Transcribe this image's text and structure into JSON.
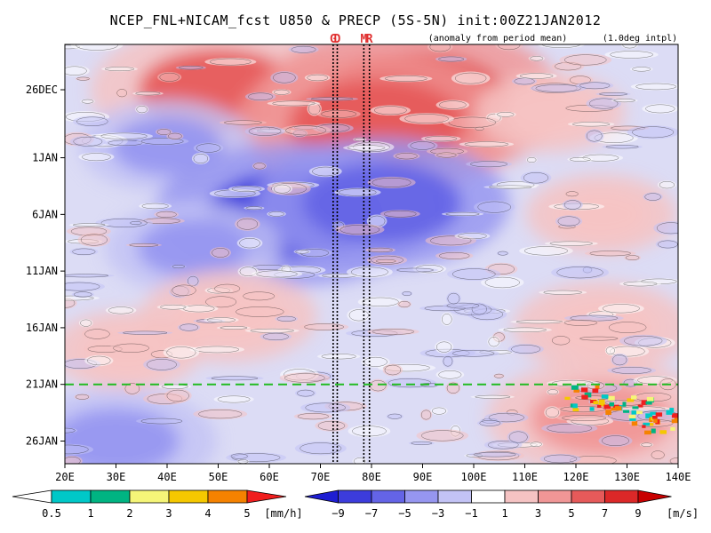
{
  "chart_data": {
    "type": "heatmap",
    "title": "NCEP_FNL+NICAM_fcst U850 & PRECP (5S-5N) init:00Z21JAN2012",
    "annotations": [
      "(anomaly from period mean)",
      "(1.0deg intpl)"
    ],
    "region_markers": [
      {
        "label": "G",
        "lon": 72.5
      },
      {
        "label": "D",
        "lon": 73.3
      },
      {
        "label": "M",
        "lon": 78.5
      },
      {
        "label": "R",
        "lon": 79.6
      }
    ],
    "x_ticks": [
      "20E",
      "30E",
      "40E",
      "50E",
      "60E",
      "70E",
      "80E",
      "90E",
      "100E",
      "110E",
      "120E",
      "130E",
      "140E"
    ],
    "x_tick_values": [
      20,
      30,
      40,
      50,
      60,
      70,
      80,
      90,
      100,
      110,
      120,
      130,
      140
    ],
    "xlim": [
      20,
      140
    ],
    "y_ticks": [
      "26DEC",
      "1JAN",
      "6JAN",
      "11JAN",
      "16JAN",
      "21JAN",
      "26JAN"
    ],
    "y_tick_values": [
      "2011-12-26",
      "2012-01-01",
      "2012-01-06",
      "2012-01-11",
      "2012-01-16",
      "2012-01-21",
      "2012-01-26"
    ],
    "ylim": [
      "2011-12-22",
      "2012-01-28"
    ],
    "forecast_init_date": "2012-01-21",
    "wind_field": {
      "name": "U850",
      "units": "[m/s]",
      "anomalies": [
        {
          "date": "2011-12-26",
          "lon": 50,
          "value": 6
        },
        {
          "date": "2011-12-27",
          "lon": 88,
          "value": 8
        },
        {
          "date": "2011-12-29",
          "lon": 81,
          "value": 7
        },
        {
          "date": "2011-12-28",
          "lon": 115,
          "value": 2
        },
        {
          "date": "2011-12-31",
          "lon": 40,
          "value": -3
        },
        {
          "date": "2012-01-06",
          "lon": 65,
          "value": -7
        },
        {
          "date": "2012-01-05",
          "lon": 82,
          "value": -6
        },
        {
          "date": "2012-01-09",
          "lon": 45,
          "value": -3
        },
        {
          "date": "2012-01-06",
          "lon": 125,
          "value": 2
        },
        {
          "date": "2012-01-15",
          "lon": 52,
          "value": 3
        },
        {
          "date": "2012-01-16",
          "lon": 125,
          "value": 3
        },
        {
          "date": "2012-01-18",
          "lon": 32,
          "value": 2
        },
        {
          "date": "2012-01-24",
          "lon": 125,
          "value": 5
        },
        {
          "date": "2012-01-26",
          "lon": 30,
          "value": -4
        }
      ]
    },
    "precip_field": {
      "name": "PRECP",
      "units": "[mm/h]",
      "cells": [
        {
          "date": "2012-01-22",
          "lon": 123
        },
        {
          "date": "2012-01-23",
          "lon": 131
        },
        {
          "date": "2012-01-24",
          "lon": 136
        }
      ]
    },
    "colorbars": [
      {
        "name": "PRECP",
        "units": "[mm/h]",
        "labels": [
          "0.5",
          "1",
          "2",
          "3",
          "4",
          "5"
        ],
        "colors": [
          "#00c8c8",
          "#00b482",
          "#f5f578",
          "#f5c800",
          "#f58200",
          "#f01e1e"
        ]
      },
      {
        "name": "U850",
        "units": "[m/s]",
        "labels": [
          "−9",
          "−7",
          "−5",
          "−3",
          "−1",
          "1",
          "3",
          "5",
          "7",
          "9"
        ],
        "colors": [
          "#1e1ed2",
          "#3c3cdc",
          "#6464e6",
          "#9696f0",
          "#c3c3f5",
          "#ffffff",
          "#f5c3c3",
          "#f09696",
          "#e65a5a",
          "#dc2828",
          "#c80000"
        ]
      }
    ]
  }
}
